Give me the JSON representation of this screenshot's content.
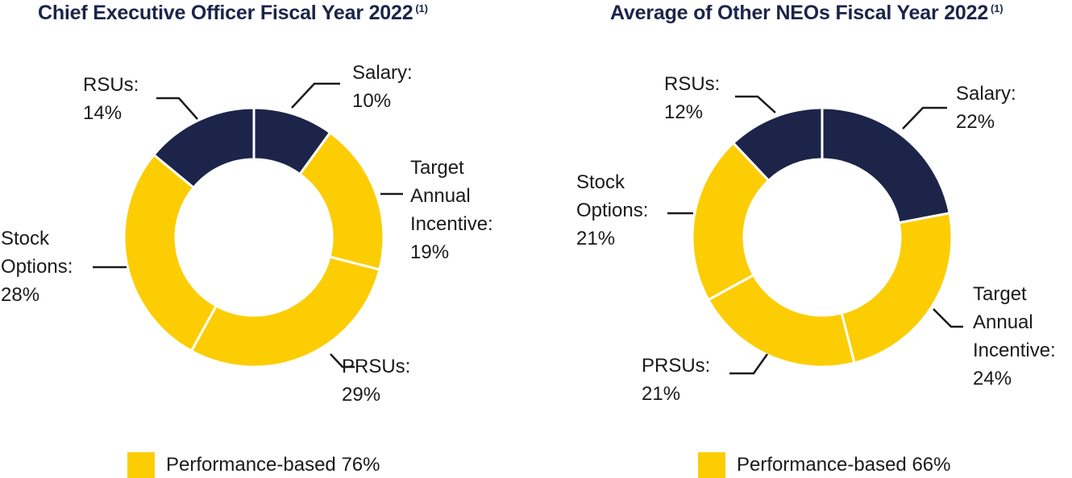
{
  "colors": {
    "navy": "#1c2449",
    "gold": "#fccd02"
  },
  "chart_data": [
    {
      "type": "pie",
      "variant": "donut",
      "title": "Chief Executive Officer Fiscal Year 2022",
      "footnote": "(1)",
      "slices": [
        {
          "name": "Salary",
          "value": 10,
          "color": "#1c2449",
          "label_line1": "Salary:",
          "label_rest": "10%"
        },
        {
          "name": "Target Annual Incentive",
          "value": 19,
          "color": "#fccd02",
          "label_line1": "Target\nAnnual\nIncentive:",
          "label_rest": "19%"
        },
        {
          "name": "PRSUs",
          "value": 29,
          "color": "#fccd02",
          "label_line1": "PRSUs:",
          "label_rest": "29%"
        },
        {
          "name": "Stock Options",
          "value": 28,
          "color": "#fccd02",
          "label_line1": "Stock\nOptions:",
          "label_rest": "28%"
        },
        {
          "name": "RSUs",
          "value": 14,
          "color": "#1c2449",
          "label_line1": "RSUs:",
          "label_rest": "14%"
        }
      ],
      "legend": {
        "label": "Performance-based 76%",
        "color": "#fccd02"
      }
    },
    {
      "type": "pie",
      "variant": "donut",
      "title": "Average of Other NEOs Fiscal Year 2022",
      "footnote": "(1)",
      "slices": [
        {
          "name": "Salary",
          "value": 22,
          "color": "#1c2449",
          "label_line1": "Salary:",
          "label_rest": "22%"
        },
        {
          "name": "Target Annual Incentive",
          "value": 24,
          "color": "#fccd02",
          "label_line1": "Target\nAnnual\nIncentive:",
          "label_rest": "24%"
        },
        {
          "name": "PRSUs",
          "value": 21,
          "color": "#fccd02",
          "label_line1": "PRSUs:",
          "label_rest": "21%"
        },
        {
          "name": "Stock Options",
          "value": 21,
          "color": "#fccd02",
          "label_line1": "Stock\nOptions:",
          "label_rest": "21%"
        },
        {
          "name": "RSUs",
          "value": 12,
          "color": "#1c2449",
          "label_line1": "RSUs:",
          "label_rest": "12%"
        }
      ],
      "legend": {
        "label": "Performance-based 66%",
        "color": "#fccd02"
      }
    }
  ]
}
